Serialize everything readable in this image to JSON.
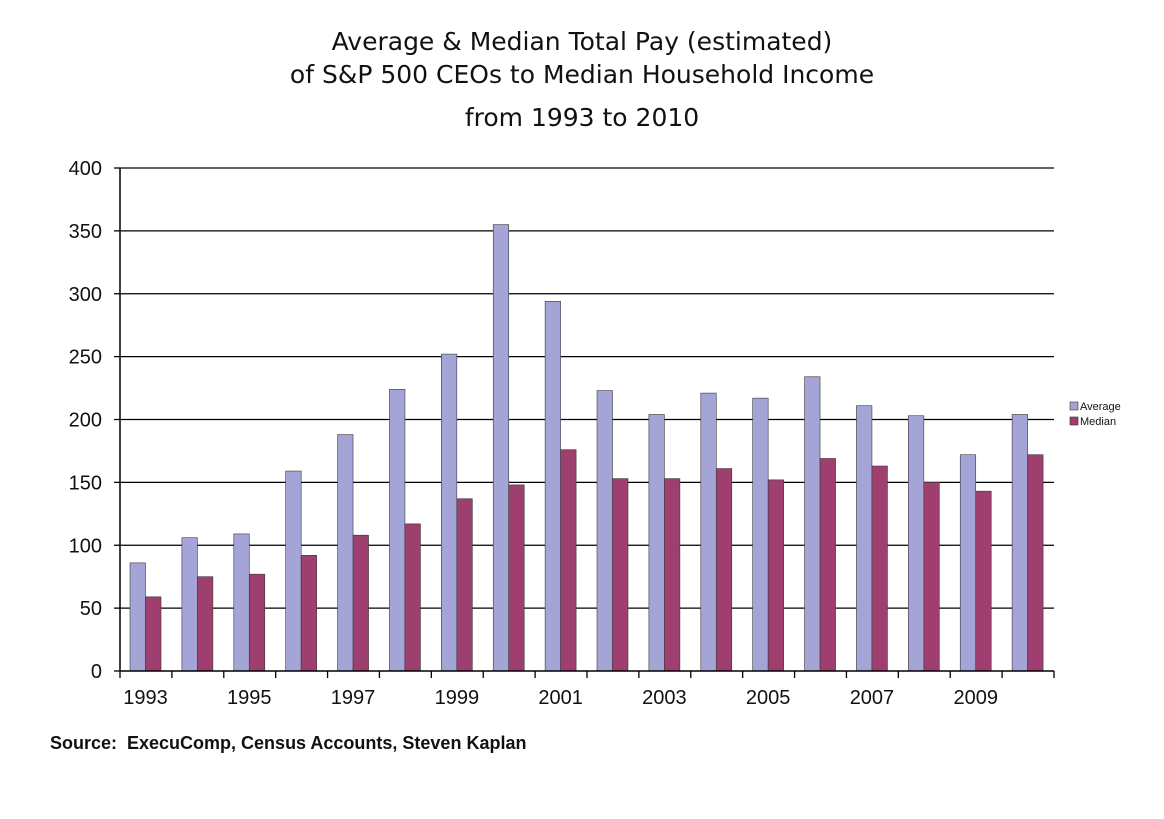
{
  "chart_data": {
    "type": "bar",
    "title": [
      "Average & Median Total Pay (estimated)",
      "of S&P 500 CEOs to Median Household Income",
      "from 1993 to 2010"
    ],
    "xlabel": "",
    "ylabel": "",
    "ylim": [
      0,
      400
    ],
    "yticks": [
      0,
      50,
      100,
      150,
      200,
      250,
      300,
      350,
      400
    ],
    "grid": true,
    "legend_position": "right",
    "categories": [
      "1993",
      "1994",
      "1995",
      "1996",
      "1997",
      "1998",
      "1999",
      "2000",
      "2001",
      "2002",
      "2003",
      "2004",
      "2005",
      "2006",
      "2007",
      "2008",
      "2009",
      "2010"
    ],
    "xtick_labels": [
      "1993",
      "1995",
      "1997",
      "1999",
      "2001",
      "2003",
      "2005",
      "2007",
      "2009"
    ],
    "series": [
      {
        "name": "Average",
        "color": "#a4a4d6",
        "values": [
          86,
          106,
          109,
          159,
          188,
          224,
          252,
          355,
          294,
          223,
          204,
          221,
          217,
          234,
          211,
          203,
          172,
          204
        ]
      },
      {
        "name": "Median",
        "color": "#9e3f6f",
        "values": [
          59,
          75,
          77,
          92,
          108,
          117,
          137,
          148,
          176,
          153,
          153,
          161,
          152,
          169,
          163,
          150,
          143,
          172
        ]
      }
    ]
  },
  "source": "Source:  ExecuComp, Census Accounts, Steven Kaplan"
}
